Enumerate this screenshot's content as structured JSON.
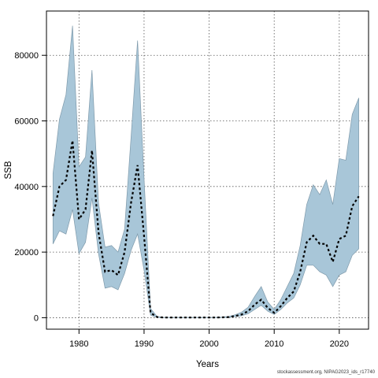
{
  "chart_data": {
    "type": "line",
    "title": "",
    "xlabel": "Years",
    "ylabel": "SSB",
    "xlim": [
      1975,
      2024.5
    ],
    "ylim": [
      -3500,
      93500
    ],
    "x_ticks": [
      1980,
      1990,
      2000,
      2010,
      2020
    ],
    "y_ticks": [
      0,
      20000,
      40000,
      60000,
      80000
    ],
    "grid": true,
    "colors": {
      "band": "#a8c6d8",
      "band_edge": "#7f9aab",
      "line": "#000000"
    },
    "x": [
      1976,
      1977,
      1978,
      1979,
      1980,
      1981,
      1982,
      1983,
      1984,
      1985,
      1986,
      1987,
      1988,
      1989,
      1990,
      1991,
      1992,
      1993,
      1994,
      1995,
      1996,
      1997,
      1998,
      1999,
      2000,
      2001,
      2002,
      2003,
      2004,
      2005,
      2006,
      2007,
      2008,
      2009,
      2010,
      2011,
      2012,
      2013,
      2014,
      2015,
      2016,
      2017,
      2018,
      2019,
      2020,
      2021,
      2022,
      2023
    ],
    "series": [
      {
        "estimate": [
          31000,
          40000,
          42000,
          54000,
          30000,
          33000,
          51000,
          26000,
          14000,
          14500,
          13000,
          20000,
          35000,
          46500,
          25000,
          1500,
          200,
          50,
          50,
          50,
          50,
          50,
          50,
          50,
          50,
          50,
          100,
          200,
          500,
          1000,
          2000,
          4000,
          5500,
          3000,
          1500,
          3500,
          6000,
          8000,
          14000,
          23000,
          25000,
          22500,
          22500,
          17000,
          24000,
          25000,
          34000,
          37000
        ],
        "lower": [
          22500,
          26500,
          25500,
          33000,
          19500,
          23000,
          36500,
          19500,
          9000,
          9500,
          8500,
          13500,
          20500,
          25500,
          14500,
          800,
          100,
          20,
          20,
          20,
          20,
          20,
          20,
          20,
          20,
          20,
          50,
          100,
          300,
          600,
          1200,
          2500,
          3800,
          2000,
          1000,
          2500,
          4500,
          6000,
          10000,
          16000,
          16000,
          14000,
          13000,
          9500,
          13000,
          14000,
          19000,
          21000
        ],
        "upper": [
          44000,
          60500,
          68000,
          89000,
          46000,
          49000,
          75500,
          35000,
          21500,
          22000,
          20000,
          27000,
          55000,
          84500,
          42500,
          2800,
          400,
          100,
          100,
          100,
          100,
          100,
          100,
          100,
          100,
          100,
          200,
          400,
          900,
          1700,
          3200,
          6500,
          9500,
          4800,
          2500,
          5500,
          9500,
          13500,
          22000,
          34500,
          40500,
          37500,
          42000,
          34500,
          48500,
          48000,
          62000,
          67000
        ]
      }
    ]
  },
  "footer": "stockassessment.org, NIPAG2023_ids_r17740"
}
